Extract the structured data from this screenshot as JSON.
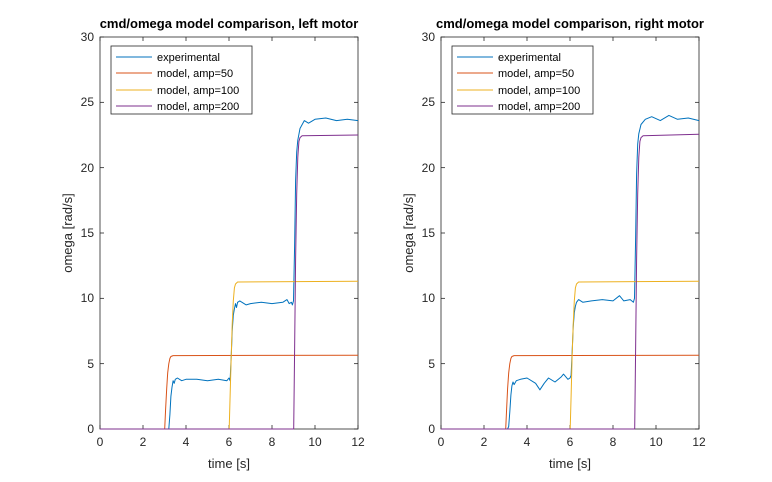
{
  "chart_data": [
    {
      "type": "line",
      "title": "cmd/omega model comparison, left motor",
      "xlabel": "time [s]",
      "ylabel": "omega [rad/s]",
      "xlim": [
        0,
        12
      ],
      "ylim": [
        0,
        30
      ],
      "xticks": [
        0,
        2,
        4,
        6,
        8,
        10,
        12
      ],
      "yticks": [
        0,
        5,
        10,
        15,
        20,
        25,
        30
      ],
      "grid": false,
      "legend_position": "top-left",
      "series": [
        {
          "name": "experimental",
          "color": "#0072BD",
          "x": [
            0,
            2.9,
            3.1,
            3.2,
            3.25,
            3.3,
            3.35,
            3.4,
            3.45,
            3.5,
            3.6,
            3.8,
            4.0,
            4.5,
            5.0,
            5.5,
            5.9,
            6.0,
            6.05,
            6.1,
            6.15,
            6.2,
            6.25,
            6.3,
            6.35,
            6.4,
            6.5,
            6.8,
            7.0,
            7.5,
            8.0,
            8.5,
            8.7,
            8.8,
            8.9,
            8.95,
            9.0,
            9.05,
            9.1,
            9.15,
            9.2,
            9.3,
            9.5,
            9.7,
            10.0,
            10.5,
            11.0,
            11.5,
            12.0
          ],
          "y": [
            0,
            0,
            0,
            0,
            1.1,
            2.5,
            3.2,
            3.7,
            3.5,
            3.8,
            3.9,
            3.7,
            3.8,
            3.8,
            3.7,
            3.8,
            3.7,
            3.9,
            3.7,
            5.5,
            7.5,
            8.7,
            9.2,
            9.6,
            9.3,
            9.7,
            9.8,
            9.5,
            9.6,
            9.7,
            9.6,
            9.7,
            9.9,
            9.6,
            9.7,
            9.5,
            9.8,
            14.0,
            19.0,
            21.2,
            22.1,
            23.0,
            23.6,
            23.4,
            23.7,
            23.8,
            23.6,
            23.7,
            23.6
          ]
        },
        {
          "name": "model, amp=50",
          "color": "#D95319",
          "x": [
            0,
            3.0,
            3.01,
            3.05,
            3.1,
            3.15,
            3.2,
            3.25,
            3.3,
            3.4,
            12.0
          ],
          "y": [
            0,
            0,
            0,
            1.5,
            3.1,
            4.3,
            5.0,
            5.4,
            5.55,
            5.62,
            5.65
          ]
        },
        {
          "name": "model, amp=100",
          "color": "#EDB120",
          "x": [
            0,
            6.0,
            6.01,
            6.05,
            6.1,
            6.15,
            6.2,
            6.25,
            6.3,
            6.4,
            12.0
          ],
          "y": [
            0,
            0,
            0,
            2.5,
            5.5,
            8.0,
            9.8,
            10.8,
            11.1,
            11.25,
            11.3
          ]
        },
        {
          "name": "model, amp=200",
          "color": "#7E2F8E",
          "x": [
            0,
            9.0,
            9.01,
            9.05,
            9.1,
            9.15,
            9.2,
            9.25,
            9.3,
            9.4,
            12.0
          ],
          "y": [
            0,
            0,
            0,
            6.0,
            13.0,
            18.0,
            20.8,
            22.0,
            22.3,
            22.45,
            22.5
          ]
        }
      ]
    },
    {
      "type": "line",
      "title": "cmd/omega model comparison, right motor",
      "xlabel": "time [s]",
      "ylabel": "omega [rad/s]",
      "xlim": [
        0,
        12
      ],
      "ylim": [
        0,
        30
      ],
      "xticks": [
        0,
        2,
        4,
        6,
        8,
        10,
        12
      ],
      "yticks": [
        0,
        5,
        10,
        15,
        20,
        25,
        30
      ],
      "grid": false,
      "legend_position": "top-left",
      "series": [
        {
          "name": "experimental",
          "color": "#0072BD",
          "x": [
            0,
            2.9,
            3.1,
            3.15,
            3.2,
            3.25,
            3.3,
            3.35,
            3.4,
            3.5,
            3.7,
            4.0,
            4.4,
            4.6,
            4.8,
            5.0,
            5.3,
            5.6,
            5.7,
            5.9,
            6.0,
            6.05,
            6.1,
            6.15,
            6.2,
            6.25,
            6.3,
            6.4,
            6.6,
            7.0,
            7.5,
            8.0,
            8.3,
            8.5,
            8.8,
            8.95,
            9.0,
            9.05,
            9.1,
            9.15,
            9.2,
            9.3,
            9.5,
            9.8,
            10.2,
            10.6,
            11.0,
            11.5,
            12.0
          ],
          "y": [
            0,
            0,
            0,
            0.2,
            1.3,
            2.6,
            3.3,
            3.6,
            3.4,
            3.7,
            3.8,
            3.9,
            3.5,
            3.0,
            3.5,
            3.9,
            3.6,
            4.0,
            4.2,
            3.8,
            3.9,
            4.1,
            5.8,
            7.8,
            8.9,
            9.4,
            9.7,
            9.9,
            9.7,
            9.8,
            9.9,
            9.8,
            10.2,
            9.8,
            9.9,
            9.7,
            10.0,
            14.5,
            19.5,
            21.8,
            22.6,
            23.3,
            23.7,
            23.9,
            23.6,
            24.0,
            23.7,
            23.8,
            23.6
          ]
        },
        {
          "name": "model, amp=50",
          "color": "#D95319",
          "x": [
            0,
            3.0,
            3.01,
            3.05,
            3.1,
            3.15,
            3.2,
            3.25,
            3.3,
            3.4,
            12.0
          ],
          "y": [
            0,
            0,
            0,
            1.5,
            3.1,
            4.3,
            5.0,
            5.4,
            5.55,
            5.62,
            5.65
          ]
        },
        {
          "name": "model, amp=100",
          "color": "#EDB120",
          "x": [
            0,
            6.0,
            6.01,
            6.05,
            6.1,
            6.15,
            6.2,
            6.25,
            6.3,
            6.4,
            12.0
          ],
          "y": [
            0,
            0,
            0,
            2.5,
            5.5,
            8.0,
            9.8,
            10.8,
            11.1,
            11.25,
            11.3
          ]
        },
        {
          "name": "model, amp=200",
          "color": "#7E2F8E",
          "x": [
            0,
            9.0,
            9.01,
            9.05,
            9.1,
            9.15,
            9.2,
            9.25,
            9.3,
            9.4,
            12.0
          ],
          "y": [
            0,
            0,
            0,
            6.0,
            13.0,
            18.0,
            20.8,
            22.0,
            22.3,
            22.45,
            22.55
          ]
        }
      ]
    }
  ]
}
